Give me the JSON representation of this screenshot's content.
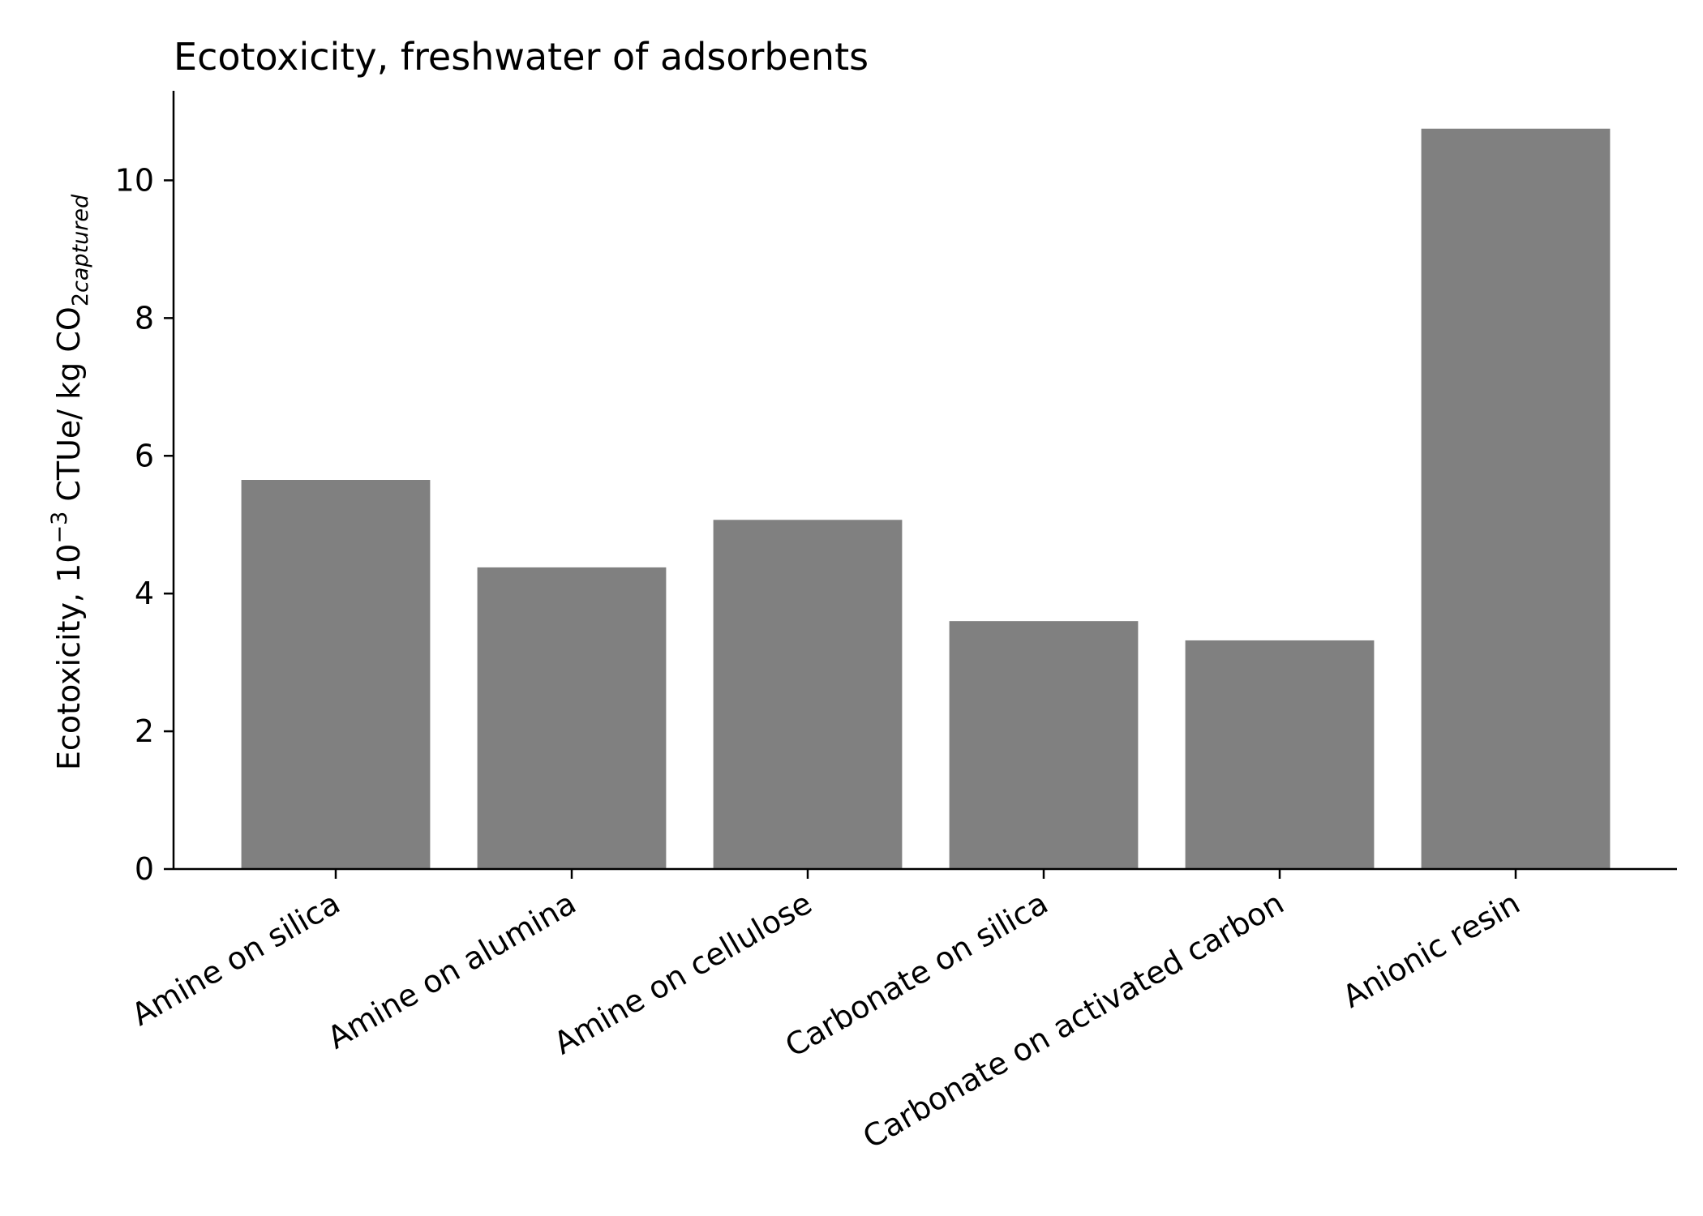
{
  "chart_data": {
    "type": "bar",
    "title": "Ecotoxicity, freshwater of adsorbents",
    "xlabel": "",
    "ylabel": {
      "main": "Ecotoxicity, 10",
      "exponent": "−3",
      "unit": " CTUe/ kg CO",
      "subscript_number": "2",
      "subscript_italic": "captured"
    },
    "categories": [
      "Amine on silica",
      "Amine on alumina",
      "Amine on cellulose",
      "Carbonate on silica",
      "Carbonate on activated carbon",
      "Anionic resin"
    ],
    "values": [
      5.65,
      4.38,
      5.07,
      3.6,
      3.32,
      10.75
    ],
    "ylim": [
      0,
      11.3
    ],
    "yticks": [
      0,
      2,
      4,
      6,
      8,
      10
    ],
    "ytick_labels": [
      "0",
      "2",
      "4",
      "6",
      "8",
      "10"
    ],
    "bar_color": "#808080",
    "axis_color": "#000000",
    "grid": false,
    "legend": "none"
  }
}
